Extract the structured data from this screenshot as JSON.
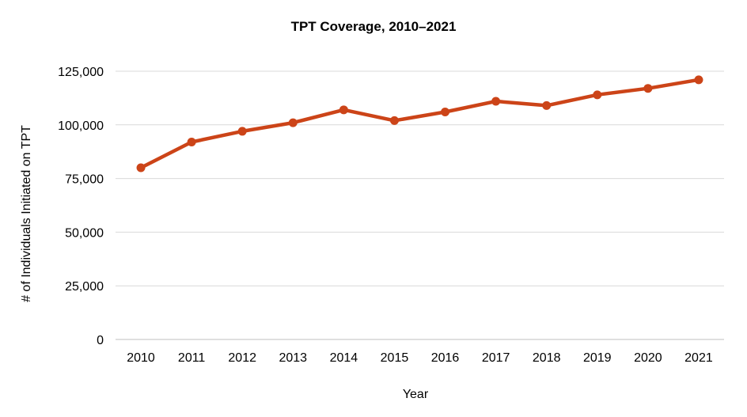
{
  "chart_data": {
    "type": "line",
    "title": "TPT Coverage, 2010–2021",
    "xlabel": "Year",
    "ylabel": "# of Individuals Initiated on TPT",
    "categories": [
      "2010",
      "2011",
      "2012",
      "2013",
      "2014",
      "2015",
      "2016",
      "2017",
      "2018",
      "2019",
      "2020",
      "2021"
    ],
    "series": [
      {
        "values": [
          80000,
          92000,
          97000,
          101000,
          107000,
          102000,
          106000,
          111000,
          109000,
          114000,
          117000,
          121000
        ]
      }
    ],
    "ylim": [
      0,
      125000
    ],
    "yticks": [
      0,
      25000,
      50000,
      75000,
      100000,
      125000
    ],
    "ytick_labels": [
      "0",
      "25,000",
      "50,000",
      "75,000",
      "100,000",
      "125,000"
    ],
    "grid": true,
    "legend": "none",
    "colors": {
      "line": "#cc4418",
      "grid": "#d9d9d9",
      "axis": "#bfbfbf"
    }
  }
}
